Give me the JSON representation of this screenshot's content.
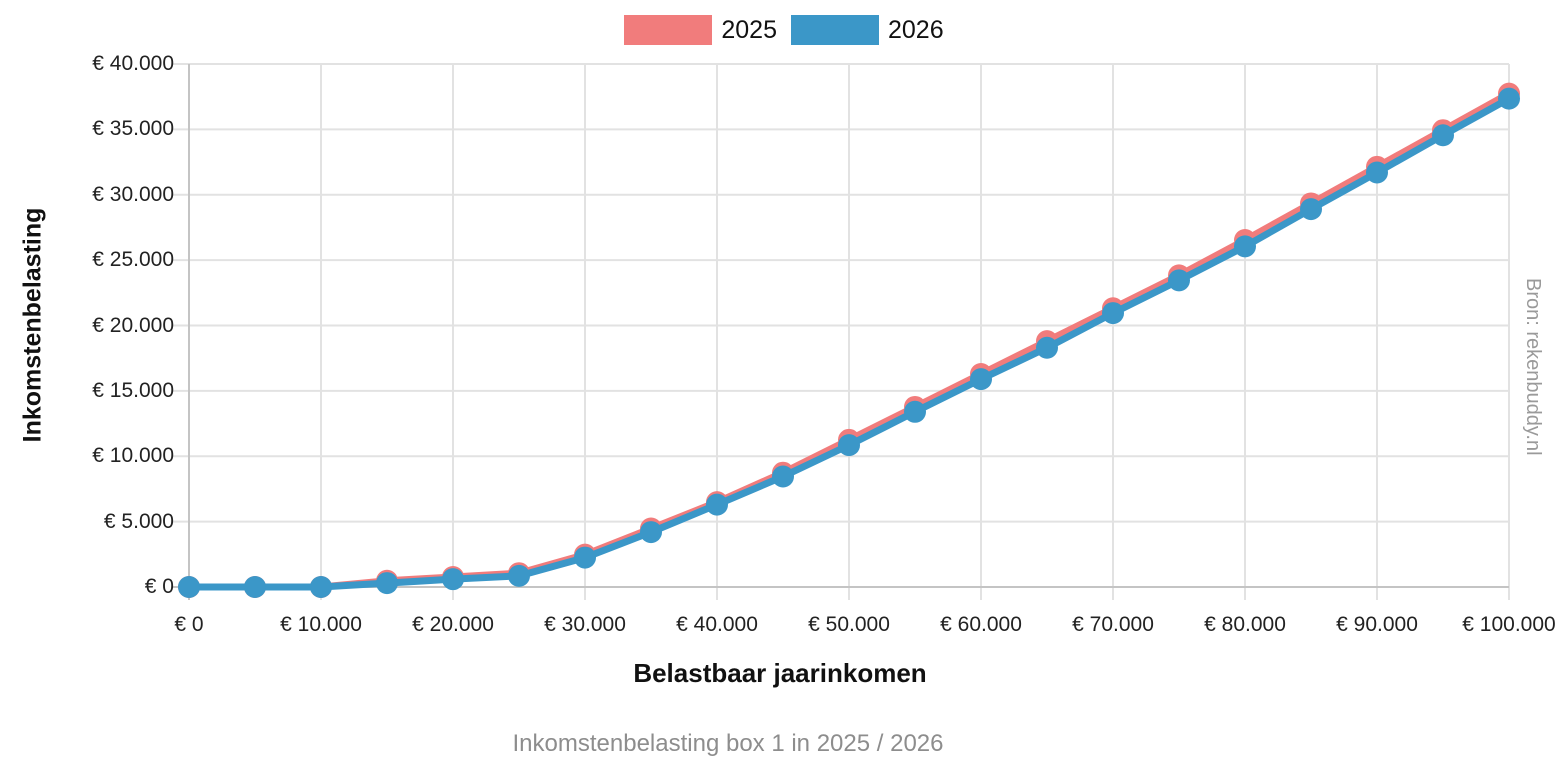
{
  "chart_data": {
    "type": "line",
    "title": "Inkomstenbelasting box 1 in 2025 / 2026",
    "xlabel": "Belastbaar jaarinkomen",
    "ylabel": "Inkomstenbelasting",
    "source": "Bron: rekenbuddy.nl",
    "x": [
      0,
      5000,
      10000,
      15000,
      20000,
      25000,
      30000,
      35000,
      40000,
      45000,
      50000,
      55000,
      60000,
      65000,
      70000,
      75000,
      80000,
      85000,
      90000,
      95000,
      100000
    ],
    "series": [
      {
        "name": "2025",
        "color": "#f17c7c",
        "values": [
          0,
          0,
          0,
          475,
          765,
          1055,
          2475,
          4470,
          6490,
          8740,
          11255,
          13770,
          16290,
          18805,
          21320,
          23835,
          26535,
          29335,
          32135,
          34935,
          37735
        ]
      },
      {
        "name": "2026",
        "color": "#3b97c8",
        "values": [
          0,
          0,
          0,
          300,
          600,
          850,
          2250,
          4200,
          6300,
          8450,
          10850,
          13400,
          15900,
          18300,
          20950,
          23450,
          26050,
          28900,
          31700,
          34550,
          37350
        ]
      }
    ],
    "xlim": [
      0,
      100000
    ],
    "ylim": [
      0,
      40000
    ],
    "x_tick_step": 10000,
    "y_tick_step": 5000,
    "xtick_labels": [
      "€ 0",
      "€ 10.000",
      "€ 20.000",
      "€ 30.000",
      "€ 40.000",
      "€ 50.000",
      "€ 60.000",
      "€ 70.000",
      "€ 80.000",
      "€ 90.000",
      "€ 100.000"
    ],
    "ytick_labels": [
      "€ 0",
      "€ 5.000",
      "€ 10.000",
      "€ 15.000",
      "€ 20.000",
      "€ 25.000",
      "€ 30.000",
      "€ 35.000",
      "€ 40.000"
    ],
    "grid": true,
    "legend_position": "top-center"
  },
  "colors": {
    "background": "#ffffff",
    "grid": "#e2e2e2",
    "axis": "#c4c4c4",
    "tick_text": "#222222",
    "title_text": "#111111",
    "caption_text": "#8d8d8d",
    "source_text": "#9a9a9a"
  }
}
